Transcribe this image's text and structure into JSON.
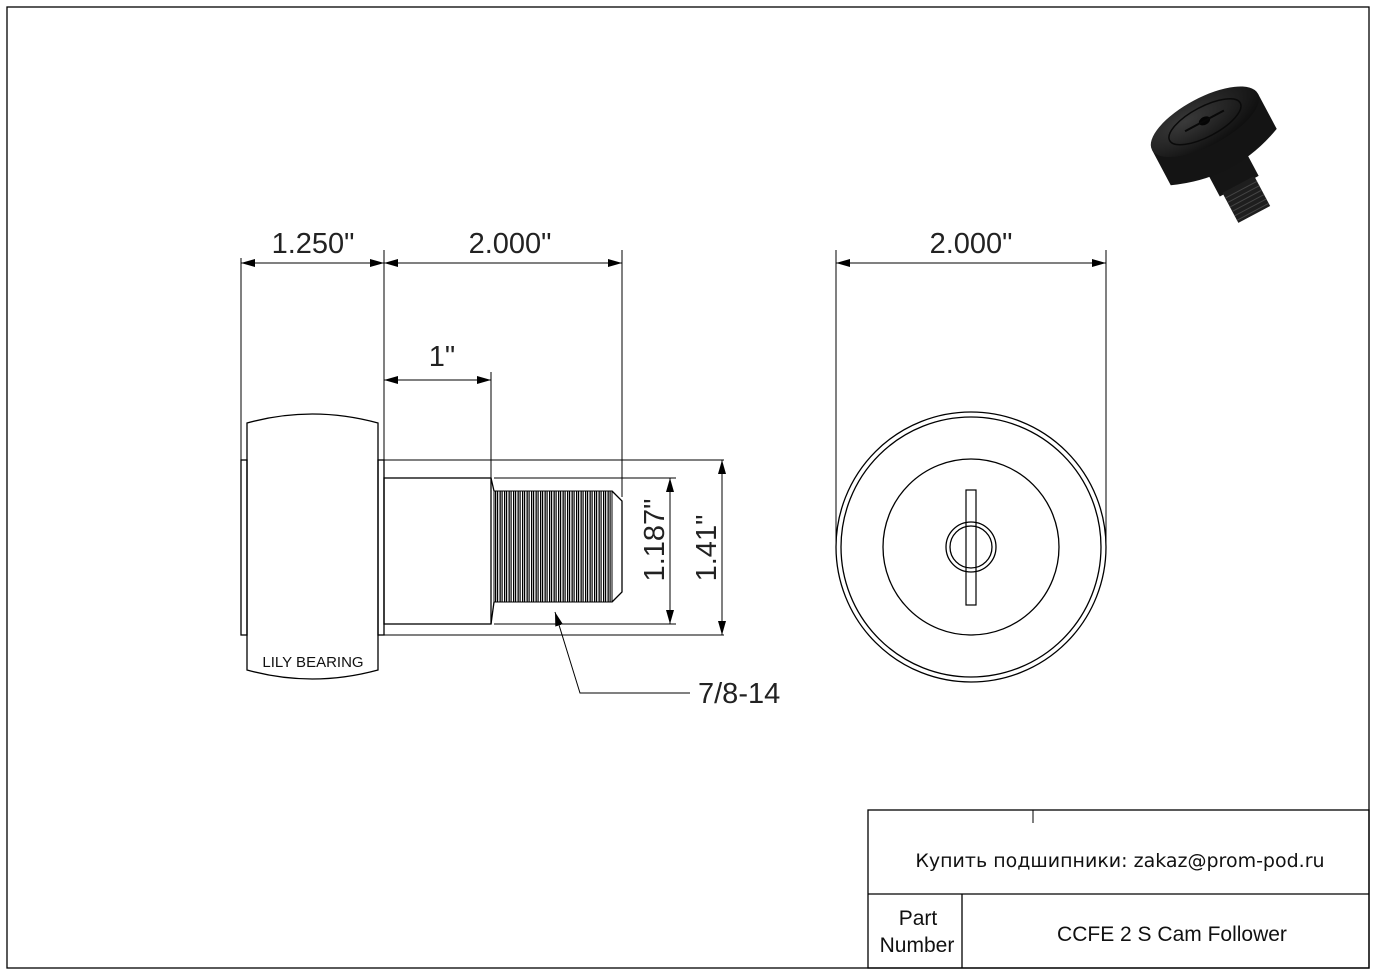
{
  "drawing": {
    "dimensions": {
      "roller_width": "1.250\"",
      "stud_length": "2.000\"",
      "thread_length": "1\"",
      "shank_diameter": "1.187\"",
      "flange_diameter": "1.41\"",
      "thread_spec": "7/8-14",
      "roller_diameter": "2.000\""
    },
    "brand_label": "LILY BEARING"
  },
  "title_block": {
    "contact": "Купить подшипники: zakaz@prom-pod.ru",
    "part_number_label_line1": "Part",
    "part_number_label_line2": "Number",
    "part_number_value": "CCFE 2 S Cam Follower"
  }
}
